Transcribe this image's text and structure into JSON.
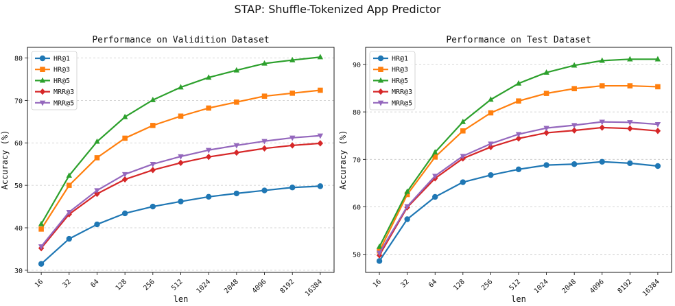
{
  "figure": {
    "suptitle": "STAP: Shuffle-Tokenized App Predictor"
  },
  "chart_data": [
    {
      "type": "line",
      "title": "Performance on Validition Dataset",
      "xlabel": "len",
      "ylabel": "Accuracy (%)",
      "categories": [
        "16",
        "32",
        "64",
        "128",
        "256",
        "512",
        "1024",
        "2048",
        "4096",
        "8192",
        "16384"
      ],
      "ylim": [
        29.5,
        82.5
      ],
      "yticks": [
        30,
        40,
        50,
        60,
        70,
        80
      ],
      "grid": "y-dashed",
      "legend": "top-left",
      "series": [
        {
          "name": "HR@1",
          "color": "#1f77b4",
          "marker": "circle",
          "values": [
            31.5,
            37.4,
            40.8,
            43.4,
            45.0,
            46.2,
            47.3,
            48.1,
            48.8,
            49.5,
            49.8
          ]
        },
        {
          "name": "HR@3",
          "color": "#ff7f0e",
          "marker": "square",
          "values": [
            39.7,
            50.0,
            56.5,
            61.1,
            64.1,
            66.3,
            68.2,
            69.6,
            71.0,
            71.7,
            72.4
          ]
        },
        {
          "name": "HR@5",
          "color": "#2ca02c",
          "marker": "triangle",
          "values": [
            40.9,
            52.3,
            60.3,
            66.1,
            70.1,
            73.1,
            75.4,
            77.1,
            78.7,
            79.5,
            80.2
          ]
        },
        {
          "name": "MRR@3",
          "color": "#d62728",
          "marker": "diamond",
          "values": [
            35.2,
            43.2,
            48.0,
            51.4,
            53.6,
            55.3,
            56.7,
            57.7,
            58.7,
            59.4,
            59.9
          ]
        },
        {
          "name": "MRR@5",
          "color": "#9467bd",
          "marker": "tri-down",
          "values": [
            35.6,
            43.7,
            48.8,
            52.6,
            55.0,
            56.8,
            58.3,
            59.4,
            60.4,
            61.2,
            61.7
          ]
        }
      ]
    },
    {
      "type": "line",
      "title": "Performance on Test Dataset",
      "xlabel": "len",
      "ylabel": "Accuracy (%)",
      "categories": [
        "16",
        "32",
        "64",
        "128",
        "256",
        "512",
        "1024",
        "2048",
        "4096",
        "8192",
        "16384"
      ],
      "ylim": [
        46.2,
        93.6
      ],
      "yticks": [
        50,
        60,
        70,
        80,
        90
      ],
      "grid": "y-dashed",
      "legend": "top-left",
      "series": [
        {
          "name": "HR@1",
          "color": "#1f77b4",
          "marker": "circle",
          "values": [
            48.6,
            57.4,
            62.1,
            65.2,
            66.7,
            67.9,
            68.8,
            69.0,
            69.5,
            69.2,
            68.6
          ]
        },
        {
          "name": "HR@3",
          "color": "#ff7f0e",
          "marker": "square",
          "values": [
            50.7,
            62.6,
            70.5,
            76.0,
            79.8,
            82.3,
            83.9,
            84.9,
            85.5,
            85.5,
            85.3
          ]
        },
        {
          "name": "HR@5",
          "color": "#2ca02c",
          "marker": "triangle",
          "values": [
            51.6,
            63.2,
            71.5,
            77.9,
            82.6,
            86.0,
            88.3,
            89.8,
            90.8,
            91.1,
            91.1
          ]
        },
        {
          "name": "MRR@3",
          "color": "#d62728",
          "marker": "diamond",
          "values": [
            49.8,
            59.9,
            66.0,
            70.2,
            72.6,
            74.4,
            75.6,
            76.1,
            76.7,
            76.5,
            76.0
          ]
        },
        {
          "name": "MRR@5",
          "color": "#9467bd",
          "marker": "tri-down",
          "values": [
            50.3,
            60.1,
            66.5,
            70.7,
            73.3,
            75.3,
            76.6,
            77.2,
            77.9,
            77.8,
            77.4
          ]
        }
      ]
    }
  ]
}
